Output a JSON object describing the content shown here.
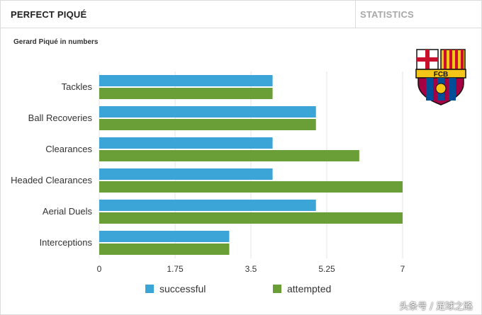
{
  "header": {
    "title": "PERFECT PIQUÉ",
    "tab_statistics": "STATISTICS"
  },
  "subtitle": "Gerard Piqué in numbers",
  "logo": {
    "icon": "fc-barcelona-crest-icon",
    "text": "FCB"
  },
  "watermark": "头条号 / 足球之路",
  "colors": {
    "successful": "#3aa5d6",
    "attempted": "#6a9e36",
    "grid": "#e4e4e4"
  },
  "chart_data": {
    "type": "bar",
    "orientation": "horizontal",
    "categories": [
      "Tackles",
      "Ball Recoveries",
      "Clearances",
      "Headed Clearances",
      "Aerial Duels",
      "Interceptions"
    ],
    "series": [
      {
        "name": "successful",
        "values": [
          4,
          5,
          4,
          4,
          5,
          3
        ]
      },
      {
        "name": "attempted",
        "values": [
          4,
          5,
          6,
          7,
          7,
          3
        ]
      }
    ],
    "xlim": [
      0,
      7
    ],
    "xticks": [
      "0",
      "1.75",
      "3.5",
      "5.25",
      "7"
    ],
    "grid": true,
    "legend_position": "bottom"
  }
}
